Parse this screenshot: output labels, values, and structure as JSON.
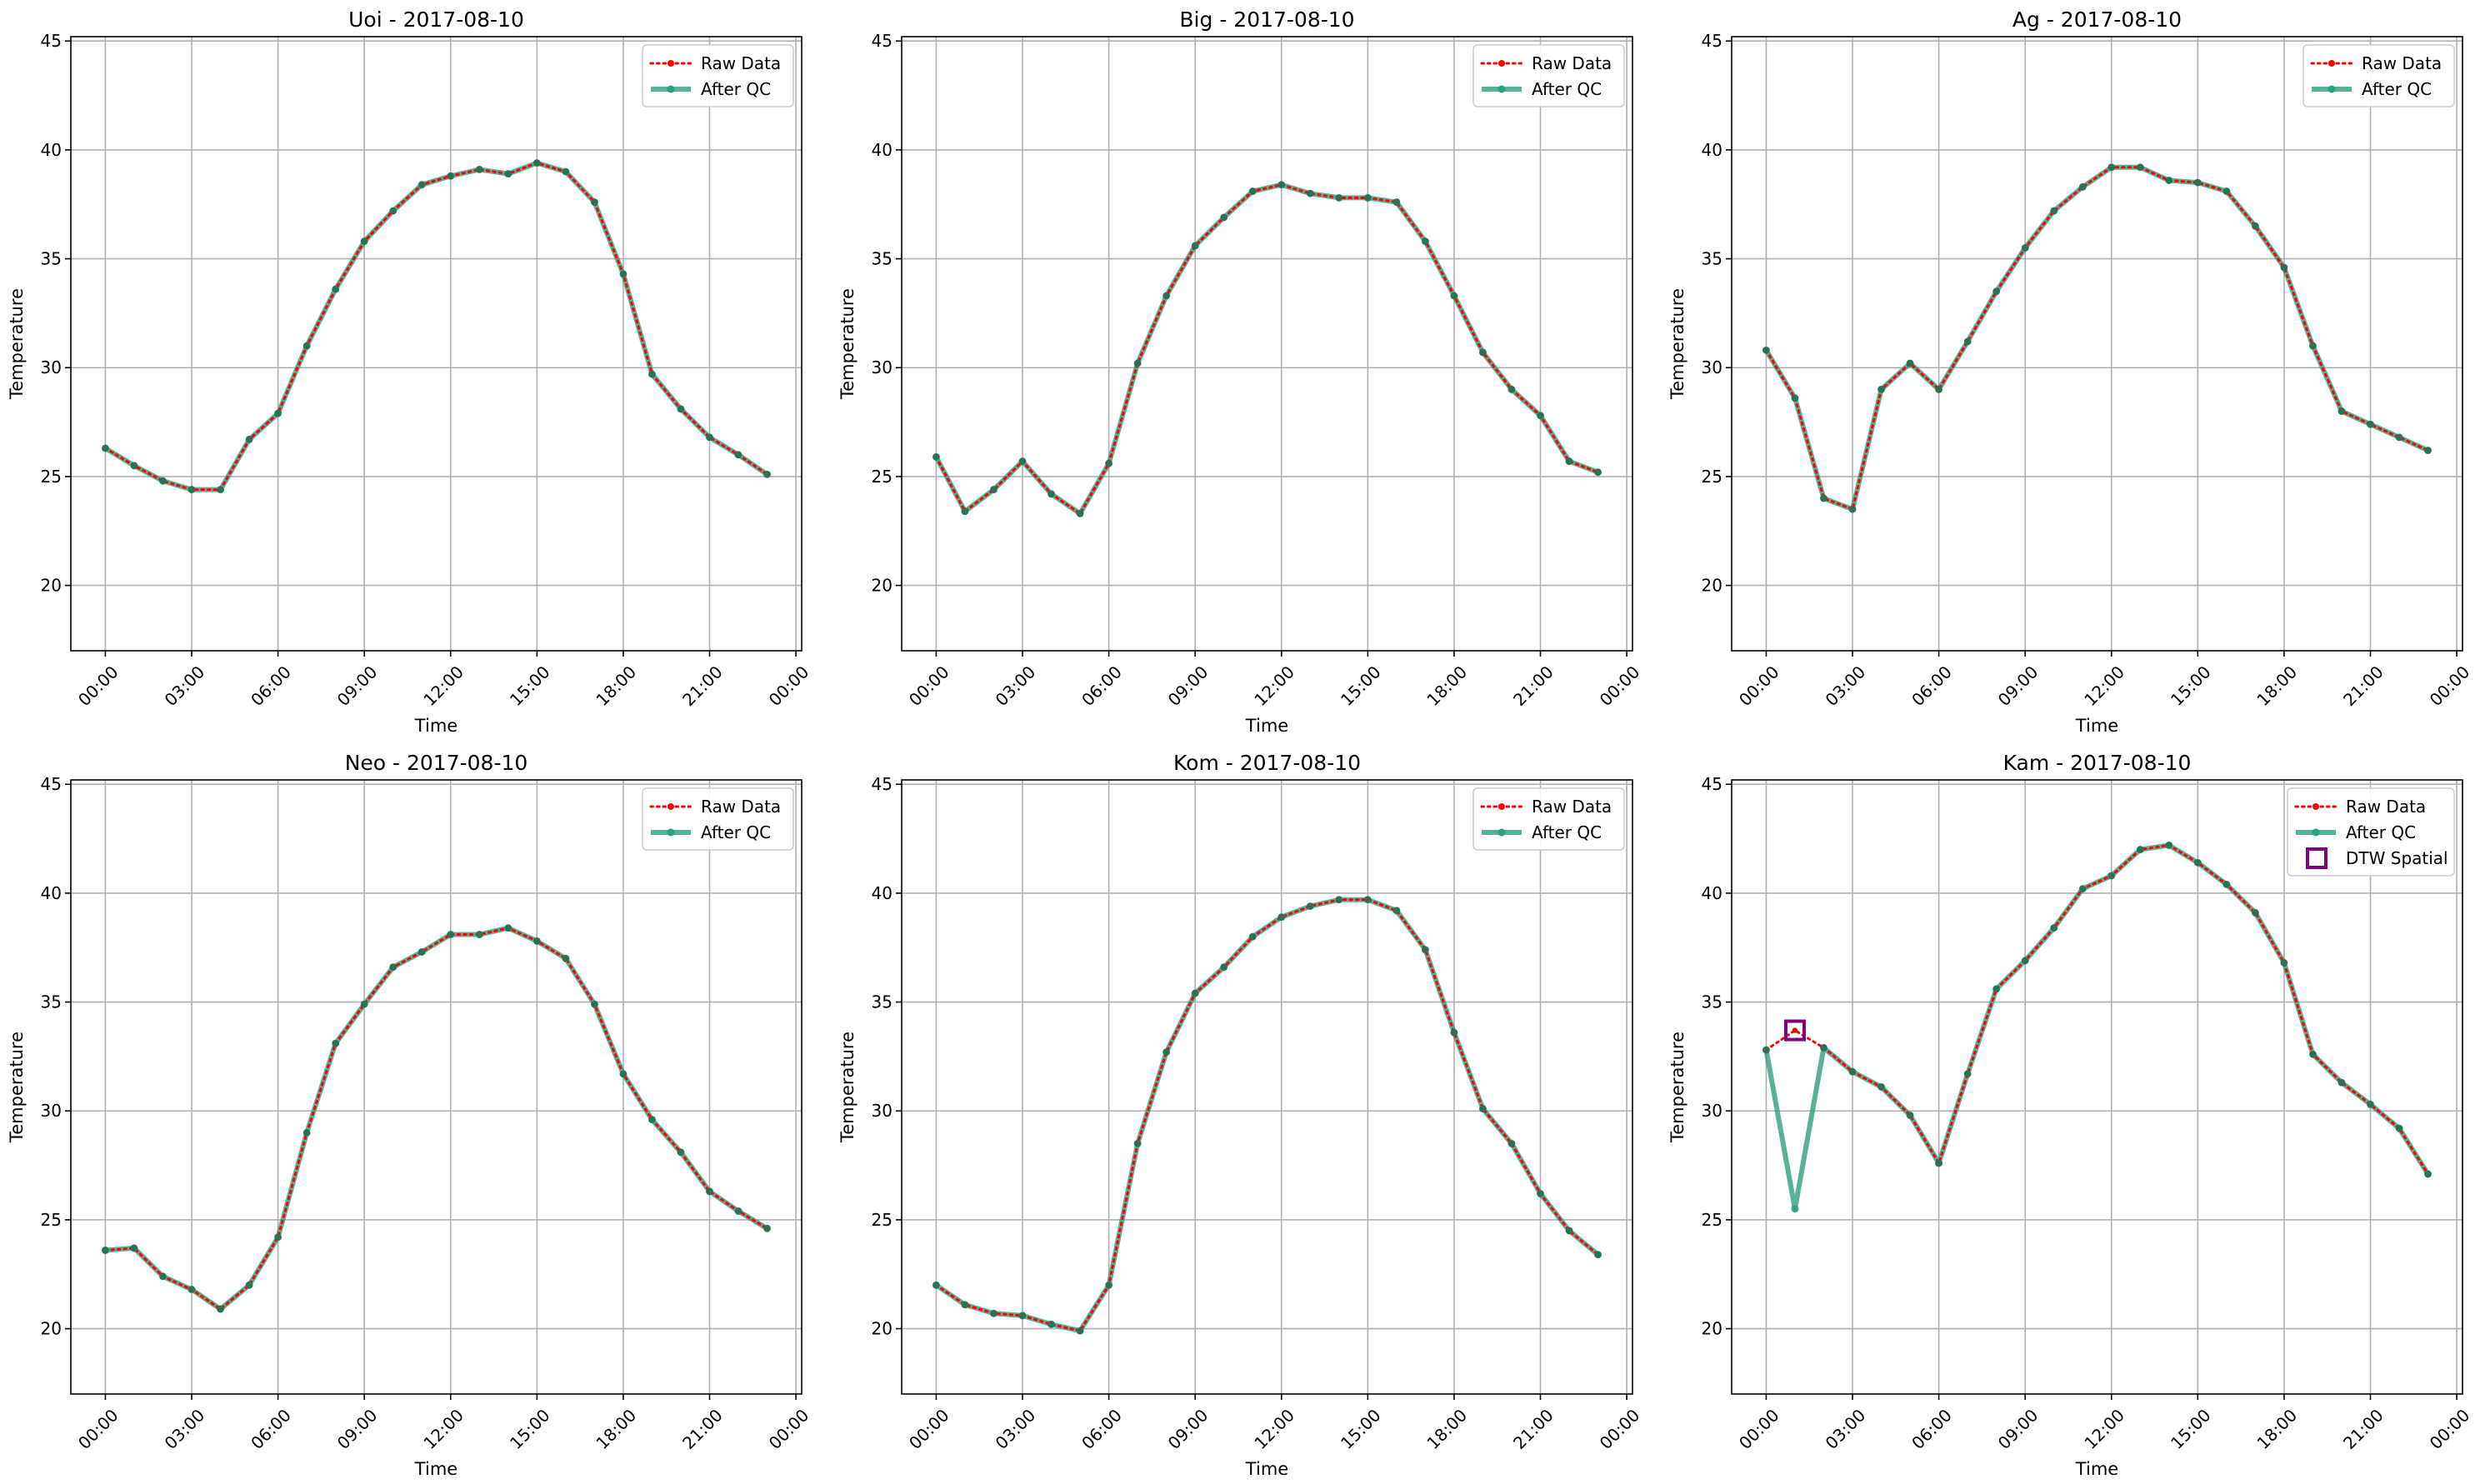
{
  "figure": {
    "background": "#ffffff"
  },
  "styles": {
    "raw": {
      "color": "#ff0000",
      "linestyle": "dotted",
      "marker": "dot"
    },
    "qc": {
      "color": "#2e9e7f",
      "linestyle": "solid",
      "marker": "dot"
    },
    "flag": {
      "color": "#800080",
      "marker": "open-square"
    }
  },
  "chart_data": [
    {
      "type": "line",
      "title": "Uoi - 2017-08-10",
      "xlabel": "Time",
      "ylabel": "Temperature",
      "x": [
        0,
        1,
        2,
        3,
        4,
        5,
        6,
        7,
        8,
        9,
        10,
        11,
        12,
        13,
        14,
        15,
        16,
        17,
        18,
        19,
        20,
        21,
        22,
        23
      ],
      "xlim": [
        -1.2,
        24.2
      ],
      "ylim": [
        17,
        45.2
      ],
      "xticks": [
        0,
        3,
        6,
        9,
        12,
        15,
        18,
        21,
        24
      ],
      "xticklabels": [
        "00:00",
        "03:00",
        "06:00",
        "09:00",
        "12:00",
        "15:00",
        "18:00",
        "21:00",
        "00:00"
      ],
      "yticks": [
        20,
        25,
        30,
        35,
        40,
        45
      ],
      "grid": true,
      "legend": "upper right",
      "series": [
        {
          "name": "Raw Data",
          "style": "raw",
          "values": [
            26.3,
            25.5,
            24.8,
            24.4,
            24.4,
            26.7,
            27.9,
            31.0,
            33.6,
            35.8,
            37.2,
            38.4,
            38.8,
            39.1,
            38.9,
            39.4,
            39.0,
            37.6,
            34.3,
            29.7,
            28.1,
            26.8,
            26.0,
            25.1
          ]
        },
        {
          "name": "After QC",
          "style": "qc",
          "values": [
            26.3,
            25.5,
            24.8,
            24.4,
            24.4,
            26.7,
            27.9,
            31.0,
            33.6,
            35.8,
            37.2,
            38.4,
            38.8,
            39.1,
            38.9,
            39.4,
            39.0,
            37.6,
            34.3,
            29.7,
            28.1,
            26.8,
            26.0,
            25.1
          ]
        }
      ],
      "flags": []
    },
    {
      "type": "line",
      "title": "Big - 2017-08-10",
      "xlabel": "Time",
      "ylabel": "Temperature",
      "x": [
        0,
        1,
        2,
        3,
        4,
        5,
        6,
        7,
        8,
        9,
        10,
        11,
        12,
        13,
        14,
        15,
        16,
        17,
        18,
        19,
        20,
        21,
        22,
        23
      ],
      "xlim": [
        -1.2,
        24.2
      ],
      "ylim": [
        17,
        45.2
      ],
      "xticks": [
        0,
        3,
        6,
        9,
        12,
        15,
        18,
        21,
        24
      ],
      "xticklabels": [
        "00:00",
        "03:00",
        "06:00",
        "09:00",
        "12:00",
        "15:00",
        "18:00",
        "21:00",
        "00:00"
      ],
      "yticks": [
        20,
        25,
        30,
        35,
        40,
        45
      ],
      "grid": true,
      "legend": "upper right",
      "series": [
        {
          "name": "Raw Data",
          "style": "raw",
          "values": [
            25.9,
            23.4,
            24.4,
            25.7,
            24.2,
            23.3,
            25.6,
            30.2,
            33.3,
            35.6,
            36.9,
            38.1,
            38.4,
            38.0,
            37.8,
            37.8,
            37.6,
            35.8,
            33.3,
            30.7,
            29.0,
            27.8,
            25.7,
            25.2
          ]
        },
        {
          "name": "After QC",
          "style": "qc",
          "values": [
            25.9,
            23.4,
            24.4,
            25.7,
            24.2,
            23.3,
            25.6,
            30.2,
            33.3,
            35.6,
            36.9,
            38.1,
            38.4,
            38.0,
            37.8,
            37.8,
            37.6,
            35.8,
            33.3,
            30.7,
            29.0,
            27.8,
            25.7,
            25.2
          ]
        }
      ],
      "flags": []
    },
    {
      "type": "line",
      "title": "Ag - 2017-08-10",
      "xlabel": "Time",
      "ylabel": "Temperature",
      "x": [
        0,
        1,
        2,
        3,
        4,
        5,
        6,
        7,
        8,
        9,
        10,
        11,
        12,
        13,
        14,
        15,
        16,
        17,
        18,
        19,
        20,
        21,
        22,
        23
      ],
      "xlim": [
        -1.2,
        24.2
      ],
      "ylim": [
        17,
        45.2
      ],
      "xticks": [
        0,
        3,
        6,
        9,
        12,
        15,
        18,
        21,
        24
      ],
      "xticklabels": [
        "00:00",
        "03:00",
        "06:00",
        "09:00",
        "12:00",
        "15:00",
        "18:00",
        "21:00",
        "00:00"
      ],
      "yticks": [
        20,
        25,
        30,
        35,
        40,
        45
      ],
      "grid": true,
      "legend": "upper right",
      "series": [
        {
          "name": "Raw Data",
          "style": "raw",
          "values": [
            30.8,
            28.6,
            24.0,
            23.5,
            29.0,
            30.2,
            29.0,
            31.2,
            33.5,
            35.5,
            37.2,
            38.3,
            39.2,
            39.2,
            38.6,
            38.5,
            38.1,
            36.5,
            34.6,
            31.0,
            28.0,
            27.4,
            26.8,
            26.2
          ]
        },
        {
          "name": "After QC",
          "style": "qc",
          "values": [
            30.8,
            28.6,
            24.0,
            23.5,
            29.0,
            30.2,
            29.0,
            31.2,
            33.5,
            35.5,
            37.2,
            38.3,
            39.2,
            39.2,
            38.6,
            38.5,
            38.1,
            36.5,
            34.6,
            31.0,
            28.0,
            27.4,
            26.8,
            26.2
          ]
        }
      ],
      "flags": []
    },
    {
      "type": "line",
      "title": "Neo - 2017-08-10",
      "xlabel": "Time",
      "ylabel": "Temperature",
      "x": [
        0,
        1,
        2,
        3,
        4,
        5,
        6,
        7,
        8,
        9,
        10,
        11,
        12,
        13,
        14,
        15,
        16,
        17,
        18,
        19,
        20,
        21,
        22,
        23
      ],
      "xlim": [
        -1.2,
        24.2
      ],
      "ylim": [
        17,
        45.2
      ],
      "xticks": [
        0,
        3,
        6,
        9,
        12,
        15,
        18,
        21,
        24
      ],
      "xticklabels": [
        "00:00",
        "03:00",
        "06:00",
        "09:00",
        "12:00",
        "15:00",
        "18:00",
        "21:00",
        "00:00"
      ],
      "yticks": [
        20,
        25,
        30,
        35,
        40,
        45
      ],
      "grid": true,
      "legend": "upper right",
      "series": [
        {
          "name": "Raw Data",
          "style": "raw",
          "values": [
            23.6,
            23.7,
            22.4,
            21.8,
            20.9,
            22.0,
            24.2,
            29.0,
            33.1,
            34.9,
            36.6,
            37.3,
            38.1,
            38.1,
            38.4,
            37.8,
            37.0,
            34.9,
            31.7,
            29.6,
            28.1,
            26.3,
            25.4,
            24.6
          ]
        },
        {
          "name": "After QC",
          "style": "qc",
          "values": [
            23.6,
            23.7,
            22.4,
            21.8,
            20.9,
            22.0,
            24.2,
            29.0,
            33.1,
            34.9,
            36.6,
            37.3,
            38.1,
            38.1,
            38.4,
            37.8,
            37.0,
            34.9,
            31.7,
            29.6,
            28.1,
            26.3,
            25.4,
            24.6
          ]
        }
      ],
      "flags": []
    },
    {
      "type": "line",
      "title": "Kom - 2017-08-10",
      "xlabel": "Time",
      "ylabel": "Temperature",
      "x": [
        0,
        1,
        2,
        3,
        4,
        5,
        6,
        7,
        8,
        9,
        10,
        11,
        12,
        13,
        14,
        15,
        16,
        17,
        18,
        19,
        20,
        21,
        22,
        23
      ],
      "xlim": [
        -1.2,
        24.2
      ],
      "ylim": [
        17,
        45.2
      ],
      "xticks": [
        0,
        3,
        6,
        9,
        12,
        15,
        18,
        21,
        24
      ],
      "xticklabels": [
        "00:00",
        "03:00",
        "06:00",
        "09:00",
        "12:00",
        "15:00",
        "18:00",
        "21:00",
        "00:00"
      ],
      "yticks": [
        20,
        25,
        30,
        35,
        40,
        45
      ],
      "grid": true,
      "legend": "upper right",
      "series": [
        {
          "name": "Raw Data",
          "style": "raw",
          "values": [
            22.0,
            21.1,
            20.7,
            20.6,
            20.2,
            19.9,
            22.0,
            28.5,
            32.7,
            35.4,
            36.6,
            38.0,
            38.9,
            39.4,
            39.7,
            39.7,
            39.2,
            37.4,
            33.6,
            30.1,
            28.5,
            26.2,
            24.5,
            23.4
          ]
        },
        {
          "name": "After QC",
          "style": "qc",
          "values": [
            22.0,
            21.1,
            20.7,
            20.6,
            20.2,
            19.9,
            22.0,
            28.5,
            32.7,
            35.4,
            36.6,
            38.0,
            38.9,
            39.4,
            39.7,
            39.7,
            39.2,
            37.4,
            33.6,
            30.1,
            28.5,
            26.2,
            24.5,
            23.4
          ]
        }
      ],
      "flags": []
    },
    {
      "type": "line",
      "title": "Kam - 2017-08-10",
      "xlabel": "Time",
      "ylabel": "Temperature",
      "x": [
        0,
        1,
        2,
        3,
        4,
        5,
        6,
        7,
        8,
        9,
        10,
        11,
        12,
        13,
        14,
        15,
        16,
        17,
        18,
        19,
        20,
        21,
        22,
        23
      ],
      "xlim": [
        -1.2,
        24.2
      ],
      "ylim": [
        17,
        45.2
      ],
      "xticks": [
        0,
        3,
        6,
        9,
        12,
        15,
        18,
        21,
        24
      ],
      "xticklabels": [
        "00:00",
        "03:00",
        "06:00",
        "09:00",
        "12:00",
        "15:00",
        "18:00",
        "21:00",
        "00:00"
      ],
      "yticks": [
        20,
        25,
        30,
        35,
        40,
        45
      ],
      "grid": true,
      "legend": "upper right",
      "series": [
        {
          "name": "Raw Data",
          "style": "raw",
          "values": [
            32.8,
            33.7,
            32.9,
            31.8,
            31.1,
            29.8,
            27.6,
            31.7,
            35.6,
            36.9,
            38.4,
            40.2,
            40.8,
            42.0,
            42.2,
            41.4,
            40.4,
            39.1,
            36.8,
            32.6,
            31.3,
            30.3,
            29.2,
            27.1
          ]
        },
        {
          "name": "After QC",
          "style": "qc",
          "values": [
            32.8,
            25.5,
            32.9,
            31.8,
            31.1,
            29.8,
            27.6,
            31.7,
            35.6,
            36.9,
            38.4,
            40.2,
            40.8,
            42.0,
            42.2,
            41.4,
            40.4,
            39.1,
            36.8,
            32.6,
            31.3,
            30.3,
            29.2,
            27.1
          ]
        }
      ],
      "flags": [
        {
          "name": "DTW Spatial",
          "style": "flag",
          "x": 1,
          "y": 33.7
        }
      ]
    }
  ]
}
